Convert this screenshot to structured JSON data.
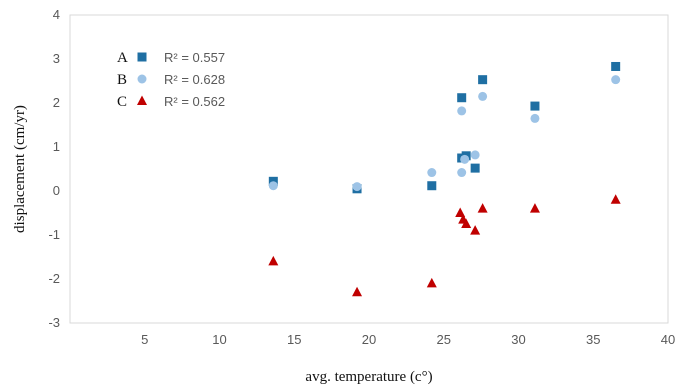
{
  "chart_data": {
    "type": "scatter",
    "xlabel": "avg. temperature (c°)",
    "ylabel": "displacement (cm/yr)",
    "xlim": [
      0,
      40
    ],
    "ylim": [
      -3,
      4
    ],
    "xticks": [
      5,
      10,
      15,
      20,
      25,
      30,
      35,
      40
    ],
    "yticks": [
      -3,
      -2,
      -1,
      0,
      1,
      2,
      3,
      4
    ],
    "grid": false,
    "legend_position": "top-left",
    "series": [
      {
        "name": "A",
        "r2_label": "R² = 0.557",
        "marker": "square",
        "color": "#1F6FA3",
        "points": [
          [
            13.6,
            0.22
          ],
          [
            19.2,
            0.05
          ],
          [
            24.2,
            0.12
          ],
          [
            26.2,
            2.12
          ],
          [
            26.2,
            0.75
          ],
          [
            26.5,
            0.8
          ],
          [
            27.1,
            0.52
          ],
          [
            27.6,
            2.53
          ],
          [
            31.1,
            1.93
          ],
          [
            36.5,
            2.83
          ]
        ]
      },
      {
        "name": "B",
        "r2_label": "R² = 0.628",
        "marker": "circle",
        "color": "#9DC3E6",
        "points": [
          [
            13.6,
            0.12
          ],
          [
            19.2,
            0.1
          ],
          [
            24.2,
            0.42
          ],
          [
            26.2,
            1.82
          ],
          [
            26.2,
            0.42
          ],
          [
            26.4,
            0.72
          ],
          [
            27.1,
            0.82
          ],
          [
            27.6,
            2.15
          ],
          [
            31.1,
            1.65
          ],
          [
            36.5,
            2.53
          ]
        ]
      },
      {
        "name": "C",
        "r2_label": "R² = 0.562",
        "marker": "triangle",
        "color": "#C00000",
        "points": [
          [
            13.6,
            -1.6
          ],
          [
            19.2,
            -2.3
          ],
          [
            24.2,
            -2.1
          ],
          [
            26.1,
            -0.5
          ],
          [
            26.3,
            -0.65
          ],
          [
            26.5,
            -0.75
          ],
          [
            27.1,
            -0.9
          ],
          [
            27.6,
            -0.4
          ],
          [
            31.1,
            -0.4
          ],
          [
            36.5,
            -0.2
          ]
        ]
      }
    ]
  }
}
